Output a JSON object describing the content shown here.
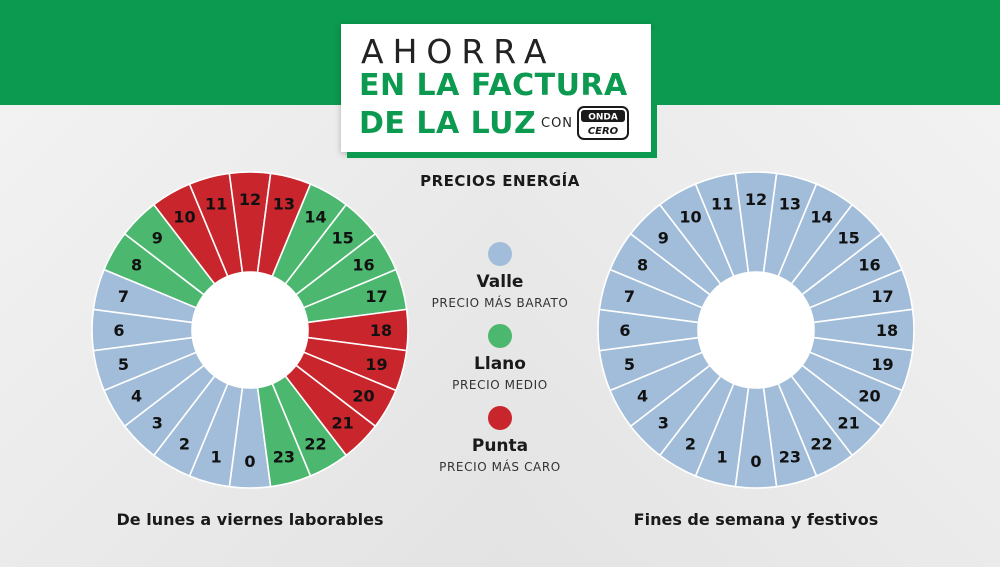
{
  "header": {
    "line1": "AHORRA",
    "line2": "EN LA FACTURA",
    "line3": "DE LA LUZ",
    "con": "CON",
    "logo_top": "ONDA",
    "logo_bottom": "CERO",
    "subtitle": "PRECIOS ENERGÍA"
  },
  "colors": {
    "valle": "#a2bdd9",
    "llano": "#4cb76e",
    "punta": "#c9252c",
    "brand_green": "#0b9a4f"
  },
  "legend": [
    {
      "key": "valle",
      "name": "Valle",
      "desc": "PRECIO MÁS BARATO"
    },
    {
      "key": "llano",
      "name": "Llano",
      "desc": "PRECIO MEDIO"
    },
    {
      "key": "punta",
      "name": "Punta",
      "desc": "PRECIO MÁS CARO"
    }
  ],
  "clocks": [
    {
      "caption": "De lunes a viernes laborables",
      "hours": [
        "valle",
        "valle",
        "valle",
        "valle",
        "valle",
        "valle",
        "valle",
        "valle",
        "llano",
        "llano",
        "punta",
        "punta",
        "punta",
        "punta",
        "llano",
        "llano",
        "llano",
        "llano",
        "punta",
        "punta",
        "punta",
        "punta",
        "llano",
        "llano"
      ]
    },
    {
      "caption": "Fines de semana y festivos",
      "hours": [
        "valle",
        "valle",
        "valle",
        "valle",
        "valle",
        "valle",
        "valle",
        "valle",
        "valle",
        "valle",
        "valle",
        "valle",
        "valle",
        "valle",
        "valle",
        "valle",
        "valle",
        "valle",
        "valle",
        "valle",
        "valle",
        "valle",
        "valle",
        "valle"
      ]
    }
  ]
}
